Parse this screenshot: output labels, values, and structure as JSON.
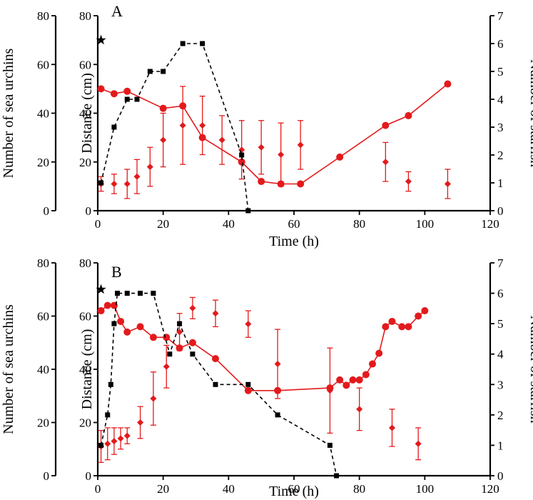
{
  "chart_data": [
    {
      "type": "line",
      "panel_label": "A",
      "xlabel": "Time (h)",
      "xlim": [
        0,
        120
      ],
      "x_ticks": [
        0,
        20,
        40,
        60,
        80,
        100,
        120
      ],
      "axes": {
        "left_outer": {
          "label": "Number of sea urchins",
          "ylim": [
            0,
            80
          ],
          "ticks": [
            0,
            20,
            40,
            60,
            80
          ]
        },
        "left_inner": {
          "label": "Distance (cm)",
          "ylim": [
            0,
            80
          ],
          "ticks": [
            0,
            20,
            40,
            60,
            80
          ]
        },
        "right": {
          "label": "Number of starfish",
          "ylim": [
            0,
            7
          ],
          "ticks": [
            0,
            1,
            2,
            3,
            4,
            5,
            6,
            7
          ]
        }
      },
      "series": [
        {
          "marker": "circle",
          "color": "#e31a1c",
          "line": "solid",
          "axis": "left_outer",
          "x": [
            1,
            5,
            9,
            20,
            26,
            32,
            44,
            50,
            56,
            62,
            74,
            88,
            95,
            107
          ],
          "y": [
            50,
            48,
            49,
            42,
            43,
            30,
            20,
            12,
            11,
            11,
            22,
            35,
            39,
            52
          ]
        },
        {
          "marker": "diamond",
          "color": "#e31a1c",
          "line": "none",
          "axis": "left_inner",
          "error_bars": true,
          "x": [
            1,
            5,
            9,
            12,
            16,
            20,
            26,
            32,
            38,
            44,
            50,
            56,
            62,
            88,
            95,
            107
          ],
          "y": [
            11,
            11,
            11,
            14,
            18,
            29,
            35,
            35,
            29,
            25,
            26,
            23,
            27,
            20,
            12,
            11
          ],
          "err": [
            3,
            4,
            6,
            7,
            8,
            11,
            16,
            12,
            10,
            12,
            11,
            13,
            10,
            8,
            4,
            6
          ]
        },
        {
          "marker": "square",
          "color": "#000000",
          "line": "dashed",
          "axis": "right",
          "x": [
            1,
            5,
            9,
            12,
            16,
            20,
            26,
            32,
            44,
            46
          ],
          "y": [
            1,
            3,
            4,
            4,
            5,
            5,
            6,
            6,
            2,
            0
          ]
        }
      ],
      "annotations": [
        {
          "marker": "star",
          "x": 1,
          "axis": "left_outer",
          "y": 70
        }
      ]
    },
    {
      "type": "line",
      "panel_label": "B",
      "xlabel": "Time (h)",
      "xlim": [
        0,
        120
      ],
      "x_ticks": [
        0,
        20,
        40,
        60,
        80,
        100,
        120
      ],
      "axes": {
        "left_outer": {
          "label": "Number of sea urchins",
          "ylim": [
            0,
            80
          ],
          "ticks": [
            0,
            20,
            40,
            60,
            80
          ]
        },
        "left_inner": {
          "label": "Distance (cm)",
          "ylim": [
            0,
            80
          ],
          "ticks": [
            0,
            20,
            40,
            60,
            80
          ]
        },
        "right": {
          "label": "Number of starfish",
          "ylim": [
            0,
            7
          ],
          "ticks": [
            0,
            1,
            2,
            3,
            4,
            5,
            6,
            7
          ]
        }
      },
      "series": [
        {
          "marker": "circle",
          "color": "#e31a1c",
          "line": "solid",
          "axis": "left_outer",
          "x": [
            1,
            3,
            5,
            7,
            9,
            13,
            17,
            21,
            25,
            29,
            36,
            46,
            55,
            71,
            74,
            76,
            78,
            80,
            82,
            84,
            86,
            88,
            90,
            93,
            95,
            98,
            100
          ],
          "y": [
            62,
            64,
            64,
            58,
            54,
            56,
            52,
            52,
            48,
            50,
            44,
            32,
            32,
            33,
            36,
            34,
            36,
            36,
            38,
            42,
            46,
            56,
            58,
            56,
            56,
            60,
            62
          ]
        },
        {
          "marker": "diamond",
          "color": "#e31a1c",
          "line": "none",
          "axis": "left_inner",
          "error_bars": true,
          "x": [
            1,
            3,
            5,
            7,
            9,
            13,
            17,
            21,
            25,
            29,
            36,
            46,
            55,
            71,
            80,
            90,
            98
          ],
          "y": [
            11,
            12,
            13,
            14,
            15,
            20,
            29,
            41,
            54,
            63,
            61,
            57,
            42,
            32,
            25,
            18,
            12
          ],
          "err": [
            6,
            6,
            5,
            4,
            3,
            6,
            10,
            8,
            7,
            4,
            5,
            5,
            13,
            16,
            8,
            7,
            6
          ]
        },
        {
          "marker": "square",
          "color": "#000000",
          "line": "dashed",
          "axis": "right",
          "x": [
            1,
            3,
            4,
            5,
            6,
            9,
            13,
            17,
            22,
            25,
            29,
            36,
            46,
            55,
            71,
            73
          ],
          "y": [
            1,
            2,
            3,
            5,
            6,
            6,
            6,
            6,
            4,
            5,
            4,
            3,
            3,
            2,
            1,
            0
          ]
        }
      ],
      "annotations": [
        {
          "marker": "star",
          "x": 1,
          "axis": "left_outer",
          "y": 70
        }
      ]
    }
  ]
}
